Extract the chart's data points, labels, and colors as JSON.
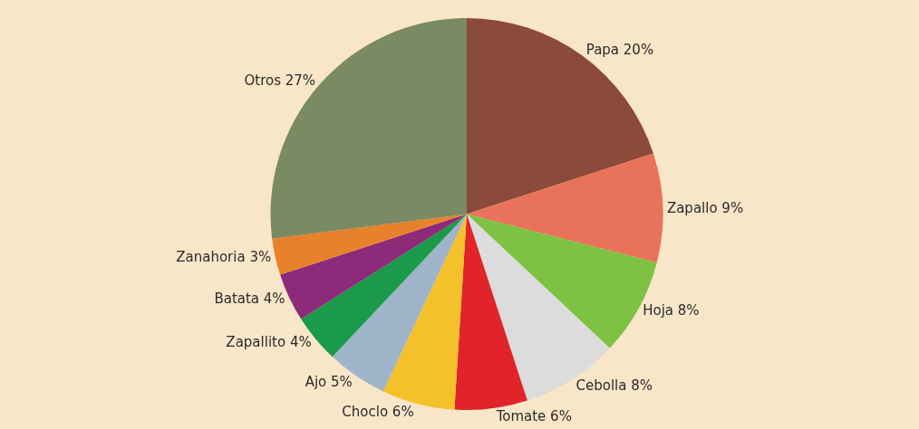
{
  "chart_data": {
    "type": "pie",
    "categories": [
      "Papa",
      "Zapallo",
      "Hoja",
      "Cebolla",
      "Tomate",
      "Choclo",
      "Ajo",
      "Zapallito",
      "Batata",
      "Zanahoria",
      "Otros"
    ],
    "values": [
      20,
      9,
      8,
      8,
      6,
      6,
      5,
      4,
      4,
      3,
      27
    ],
    "value_labels": [
      "20%",
      "9%",
      "8%",
      "8%",
      "6%",
      "6%",
      "5%",
      "4%",
      "4%",
      "3%",
      "27%"
    ],
    "colors": [
      "#8b4a3a",
      "#e8735a",
      "#7dc242",
      "#dcdcdc",
      "#e0242a",
      "#f5c12b",
      "#9fb4c8",
      "#1a9a4a",
      "#8e2a7a",
      "#e8822a",
      "#7a8a62"
    ],
    "legend": false
  }
}
